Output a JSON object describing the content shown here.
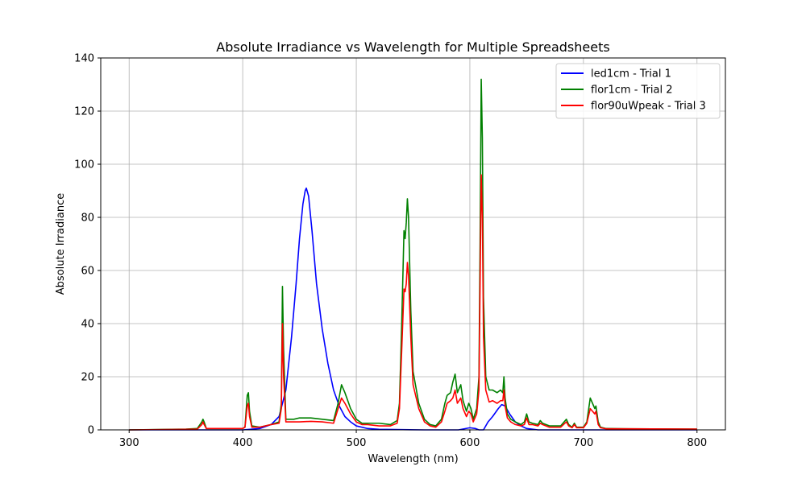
{
  "chart_data": {
    "type": "line",
    "title": "Absolute Irradiance vs Wavelength for Multiple Spreadsheets",
    "xlabel": "Wavelength (nm)",
    "ylabel": "Absolute Irradiance",
    "xlim": [
      275,
      825
    ],
    "ylim": [
      0,
      140
    ],
    "xticks": [
      300,
      400,
      500,
      600,
      700,
      800
    ],
    "yticks": [
      0,
      20,
      40,
      60,
      80,
      100,
      120,
      140
    ],
    "grid": true,
    "legend_position": "top-right",
    "series": [
      {
        "name": "led1cm - Trial 1",
        "color": "#0000ff",
        "points": [
          [
            300,
            0
          ],
          [
            400,
            0
          ],
          [
            415,
            0.5
          ],
          [
            425,
            2
          ],
          [
            432,
            5
          ],
          [
            438,
            15
          ],
          [
            443,
            35
          ],
          [
            447,
            55
          ],
          [
            450,
            72
          ],
          [
            453,
            85
          ],
          [
            455,
            90
          ],
          [
            456,
            91
          ],
          [
            458,
            88
          ],
          [
            461,
            75
          ],
          [
            465,
            55
          ],
          [
            470,
            38
          ],
          [
            475,
            25
          ],
          [
            480,
            15
          ],
          [
            485,
            9
          ],
          [
            490,
            5
          ],
          [
            495,
            3
          ],
          [
            500,
            1.5
          ],
          [
            510,
            0.5
          ],
          [
            520,
            0.2
          ],
          [
            560,
            0
          ],
          [
            590,
            0
          ],
          [
            600,
            0.8
          ],
          [
            605,
            0.5
          ],
          [
            608,
            0
          ],
          [
            612,
            0
          ],
          [
            616,
            3
          ],
          [
            620,
            5
          ],
          [
            625,
            8
          ],
          [
            628,
            9.5
          ],
          [
            631,
            9
          ],
          [
            635,
            6
          ],
          [
            640,
            3
          ],
          [
            645,
            1.5
          ],
          [
            650,
            0.5
          ],
          [
            660,
            0
          ],
          [
            800,
            0
          ]
        ]
      },
      {
        "name": "flor1cm - Trial 2",
        "color": "#008000",
        "points": [
          [
            300,
            0
          ],
          [
            350,
            0.3
          ],
          [
            360,
            0.5
          ],
          [
            364,
            3
          ],
          [
            365,
            4
          ],
          [
            366,
            3
          ],
          [
            368,
            0.5
          ],
          [
            400,
            0.5
          ],
          [
            402,
            1
          ],
          [
            404,
            13
          ],
          [
            405,
            14
          ],
          [
            406,
            7
          ],
          [
            408,
            1.5
          ],
          [
            415,
            1
          ],
          [
            425,
            2
          ],
          [
            432,
            3
          ],
          [
            434,
            10
          ],
          [
            435,
            54
          ],
          [
            436,
            30
          ],
          [
            438,
            4
          ],
          [
            445,
            4
          ],
          [
            450,
            4.5
          ],
          [
            460,
            4.5
          ],
          [
            470,
            4
          ],
          [
            480,
            3.5
          ],
          [
            484,
            10
          ],
          [
            487,
            17
          ],
          [
            490,
            14
          ],
          [
            495,
            8
          ],
          [
            500,
            4
          ],
          [
            505,
            2.5
          ],
          [
            510,
            2.5
          ],
          [
            520,
            2.5
          ],
          [
            530,
            2
          ],
          [
            536,
            3.5
          ],
          [
            538,
            10
          ],
          [
            540,
            40
          ],
          [
            542,
            75
          ],
          [
            543,
            72
          ],
          [
            544,
            78
          ],
          [
            545,
            87
          ],
          [
            546,
            80
          ],
          [
            548,
            45
          ],
          [
            550,
            22
          ],
          [
            555,
            10
          ],
          [
            560,
            4
          ],
          [
            565,
            2
          ],
          [
            570,
            1.5
          ],
          [
            575,
            4
          ],
          [
            578,
            10
          ],
          [
            580,
            13
          ],
          [
            583,
            14
          ],
          [
            585,
            18
          ],
          [
            587,
            21
          ],
          [
            589,
            14
          ],
          [
            592,
            17
          ],
          [
            594,
            11
          ],
          [
            597,
            7
          ],
          [
            599,
            10
          ],
          [
            601,
            8
          ],
          [
            603,
            4
          ],
          [
            606,
            8
          ],
          [
            608,
            20
          ],
          [
            609,
            70
          ],
          [
            610,
            132
          ],
          [
            611,
            110
          ],
          [
            612,
            50
          ],
          [
            614,
            20
          ],
          [
            617,
            15
          ],
          [
            620,
            15
          ],
          [
            624,
            14
          ],
          [
            627,
            15
          ],
          [
            629,
            14
          ],
          [
            630,
            20
          ],
          [
            631,
            12
          ],
          [
            633,
            6
          ],
          [
            636,
            4
          ],
          [
            640,
            3
          ],
          [
            645,
            2
          ],
          [
            648,
            3
          ],
          [
            650,
            6
          ],
          [
            652,
            3
          ],
          [
            655,
            2.5
          ],
          [
            660,
            2
          ],
          [
            662,
            3.5
          ],
          [
            664,
            2.5
          ],
          [
            670,
            1.5
          ],
          [
            680,
            1.5
          ],
          [
            685,
            4
          ],
          [
            687,
            2
          ],
          [
            690,
            1
          ],
          [
            692,
            2.5
          ],
          [
            694,
            1
          ],
          [
            700,
            1
          ],
          [
            703,
            3
          ],
          [
            706,
            12
          ],
          [
            708,
            10
          ],
          [
            710,
            8
          ],
          [
            711,
            9
          ],
          [
            713,
            3
          ],
          [
            715,
            1
          ],
          [
            720,
            0.5
          ],
          [
            740,
            0.4
          ],
          [
            800,
            0.3
          ]
        ]
      },
      {
        "name": "flor90uWpeak - Trial 3",
        "color": "#ff0000",
        "points": [
          [
            300,
            0
          ],
          [
            350,
            0.2
          ],
          [
            360,
            0.3
          ],
          [
            364,
            2
          ],
          [
            365,
            3
          ],
          [
            366,
            2
          ],
          [
            368,
            0.5
          ],
          [
            400,
            0.5
          ],
          [
            402,
            1
          ],
          [
            404,
            9
          ],
          [
            405,
            10
          ],
          [
            406,
            5
          ],
          [
            408,
            1
          ],
          [
            415,
            1
          ],
          [
            425,
            2
          ],
          [
            432,
            2.5
          ],
          [
            434,
            8
          ],
          [
            435,
            40
          ],
          [
            436,
            20
          ],
          [
            438,
            3
          ],
          [
            445,
            3
          ],
          [
            450,
            3
          ],
          [
            460,
            3.2
          ],
          [
            470,
            3
          ],
          [
            480,
            2.5
          ],
          [
            484,
            8
          ],
          [
            487,
            12
          ],
          [
            490,
            10
          ],
          [
            495,
            6
          ],
          [
            500,
            3
          ],
          [
            505,
            2
          ],
          [
            510,
            2
          ],
          [
            520,
            1.5
          ],
          [
            530,
            1.5
          ],
          [
            536,
            2.5
          ],
          [
            538,
            8
          ],
          [
            540,
            30
          ],
          [
            542,
            53
          ],
          [
            543,
            52
          ],
          [
            544,
            55
          ],
          [
            545,
            63
          ],
          [
            546,
            58
          ],
          [
            548,
            35
          ],
          [
            550,
            17
          ],
          [
            555,
            8
          ],
          [
            560,
            3
          ],
          [
            565,
            1.5
          ],
          [
            570,
            1
          ],
          [
            575,
            3
          ],
          [
            578,
            7
          ],
          [
            580,
            10
          ],
          [
            583,
            11
          ],
          [
            585,
            12
          ],
          [
            587,
            15
          ],
          [
            589,
            10
          ],
          [
            592,
            12
          ],
          [
            594,
            8
          ],
          [
            597,
            5
          ],
          [
            599,
            7
          ],
          [
            601,
            6
          ],
          [
            603,
            3
          ],
          [
            606,
            6
          ],
          [
            608,
            15
          ],
          [
            609,
            55
          ],
          [
            610,
            96
          ],
          [
            611,
            80
          ],
          [
            612,
            35
          ],
          [
            614,
            15
          ],
          [
            617,
            10.5
          ],
          [
            620,
            11
          ],
          [
            624,
            10
          ],
          [
            627,
            11
          ],
          [
            629,
            11
          ],
          [
            630,
            15
          ],
          [
            631,
            9
          ],
          [
            633,
            4.5
          ],
          [
            636,
            3
          ],
          [
            640,
            2
          ],
          [
            645,
            1.5
          ],
          [
            648,
            2
          ],
          [
            650,
            4.5
          ],
          [
            652,
            2
          ],
          [
            655,
            2
          ],
          [
            660,
            1.5
          ],
          [
            662,
            2.5
          ],
          [
            664,
            2
          ],
          [
            670,
            1
          ],
          [
            680,
            1
          ],
          [
            685,
            3
          ],
          [
            687,
            1.5
          ],
          [
            690,
            0.8
          ],
          [
            692,
            2
          ],
          [
            694,
            0.8
          ],
          [
            700,
            0.8
          ],
          [
            703,
            2.5
          ],
          [
            706,
            8
          ],
          [
            708,
            7
          ],
          [
            710,
            6
          ],
          [
            711,
            7
          ],
          [
            713,
            2
          ],
          [
            715,
            0.8
          ],
          [
            720,
            0.4
          ],
          [
            740,
            0.4
          ],
          [
            800,
            0.3
          ]
        ]
      }
    ]
  }
}
